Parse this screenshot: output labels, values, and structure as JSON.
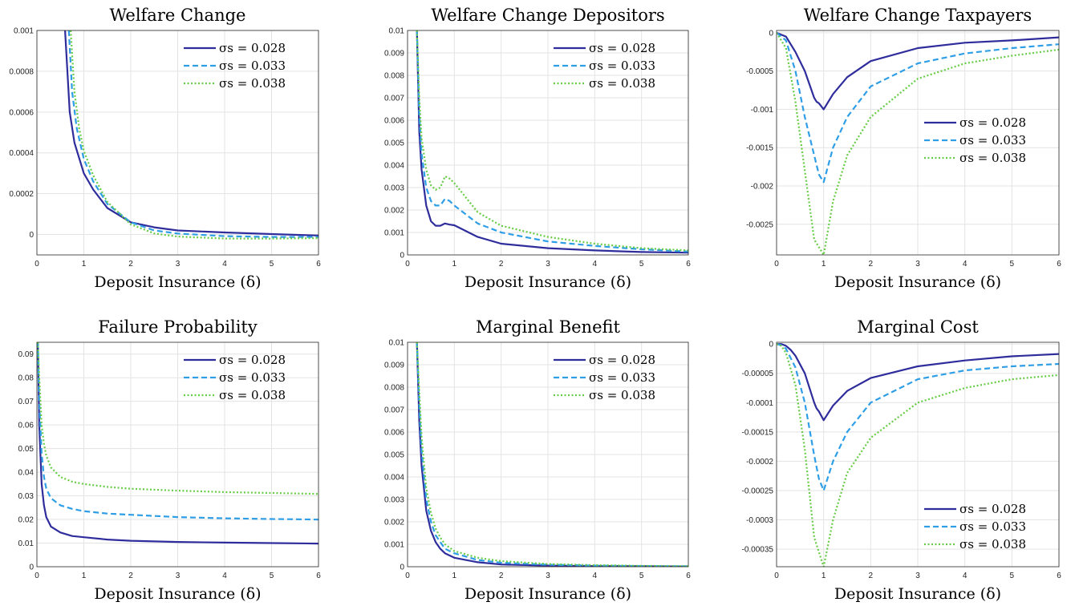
{
  "colors": {
    "s1": "#2f2d9c",
    "s2": "#2e9ee6",
    "s3": "#66cc44"
  },
  "chart_data": [
    {
      "type": "line",
      "title": "Welfare Change",
      "xlabel": "Deposit Insurance (δ)",
      "xlim": [
        0,
        6
      ],
      "ylim": [
        -0.0001,
        0.001
      ],
      "xticks": [
        "0",
        "1",
        "2",
        "3",
        "4",
        "5",
        "6"
      ],
      "yticks": [
        {
          "v": 0,
          "label": "0"
        },
        {
          "v": 0.0002,
          "label": "0.0002"
        },
        {
          "v": 0.0004,
          "label": "0.0004"
        },
        {
          "v": 0.0006,
          "label": "0.0006"
        },
        {
          "v": 0.0008,
          "label": "0.0008"
        },
        {
          "v": 0.001,
          "label": "0.001"
        }
      ],
      "legend": "top-right",
      "series": [
        {
          "name": "σs = 0.028",
          "style": "solid",
          "x": [
            0.6,
            0.7,
            0.8,
            1.0,
            1.2,
            1.5,
            2.0,
            2.5,
            3,
            4,
            5,
            6
          ],
          "y": [
            0.001,
            0.0006,
            0.00045,
            0.0003,
            0.00022,
            0.00013,
            6e-05,
            3.5e-05,
            2e-05,
            1e-05,
            2e-06,
            -5e-06
          ]
        },
        {
          "name": "σs = 0.033",
          "style": "dashed",
          "x": [
            0.68,
            0.75,
            0.85,
            1.0,
            1.2,
            1.5,
            2.0,
            2.5,
            3,
            4,
            5,
            6
          ],
          "y": [
            0.001,
            0.0007,
            0.00052,
            0.00037,
            0.00026,
            0.00015,
            6e-05,
            2e-05,
            5e-06,
            -8e-06,
            -1.2e-05,
            -1.2e-05
          ]
        },
        {
          "name": "σs = 0.038",
          "style": "dotted",
          "x": [
            0.72,
            0.8,
            0.9,
            1.0,
            1.2,
            1.5,
            2.0,
            2.5,
            3,
            4,
            5,
            6
          ],
          "y": [
            0.001,
            0.0007,
            0.00052,
            0.00041,
            0.00029,
            0.00016,
            5e-05,
            5e-06,
            -1e-05,
            -2e-05,
            -2e-05,
            -1.8e-05
          ]
        }
      ]
    },
    {
      "type": "line",
      "title": "Welfare Change Depositors",
      "xlabel": "Deposit Insurance (δ)",
      "xlim": [
        0,
        6
      ],
      "ylim": [
        0,
        0.01
      ],
      "xticks": [
        "0",
        "1",
        "2",
        "3",
        "4",
        "5",
        "6"
      ],
      "yticks": [
        {
          "v": 0,
          "label": "0"
        },
        {
          "v": 0.001,
          "label": "0.001"
        },
        {
          "v": 0.002,
          "label": "0.002"
        },
        {
          "v": 0.003,
          "label": "0.003"
        },
        {
          "v": 0.004,
          "label": "0.004"
        },
        {
          "v": 0.005,
          "label": "0.005"
        },
        {
          "v": 0.006,
          "label": "0.006"
        },
        {
          "v": 0.007,
          "label": "0.007"
        },
        {
          "v": 0.008,
          "label": "0.008"
        },
        {
          "v": 0.009,
          "label": "0.009"
        },
        {
          "v": 0.01,
          "label": "0.01"
        }
      ],
      "legend": "top-right",
      "series": [
        {
          "name": "σs = 0.028",
          "style": "solid",
          "x": [
            0.2,
            0.25,
            0.3,
            0.4,
            0.5,
            0.6,
            0.7,
            0.8,
            0.9,
            1.0,
            1.5,
            2,
            3,
            4,
            5,
            6
          ],
          "y": [
            0.01,
            0.0055,
            0.0038,
            0.0022,
            0.0015,
            0.0013,
            0.0013,
            0.0014,
            0.00135,
            0.00132,
            0.0008,
            0.0005,
            0.0003,
            0.0002,
            0.00013,
            0.0001
          ]
        },
        {
          "name": "σs = 0.033",
          "style": "dashed",
          "x": [
            0.2,
            0.25,
            0.3,
            0.4,
            0.5,
            0.6,
            0.7,
            0.8,
            0.9,
            1.0,
            1.5,
            2,
            3,
            4,
            5,
            6
          ],
          "y": [
            0.01,
            0.0063,
            0.0045,
            0.003,
            0.0024,
            0.0022,
            0.0022,
            0.0025,
            0.0024,
            0.0022,
            0.0014,
            0.001,
            0.0006,
            0.0004,
            0.00025,
            0.00015
          ]
        },
        {
          "name": "σs = 0.038",
          "style": "dotted",
          "x": [
            0.2,
            0.25,
            0.3,
            0.4,
            0.5,
            0.6,
            0.7,
            0.8,
            0.9,
            1.0,
            1.5,
            2,
            3,
            4,
            5,
            6
          ],
          "y": [
            0.01,
            0.007,
            0.0052,
            0.0038,
            0.0031,
            0.0029,
            0.003,
            0.0035,
            0.0034,
            0.0032,
            0.0019,
            0.0013,
            0.0008,
            0.0005,
            0.0003,
            0.0002
          ]
        }
      ]
    },
    {
      "type": "line",
      "title": "Welfare Change Taxpayers",
      "xlabel": "Deposit Insurance (δ)",
      "xlim": [
        0,
        6
      ],
      "ylim": [
        -0.0029,
        3e-05
      ],
      "xticks": [
        "0",
        "1",
        "2",
        "3",
        "4",
        "5",
        "6"
      ],
      "yticks": [
        {
          "v": 0,
          "label": "0"
        },
        {
          "v": -0.0005,
          "label": "-0.0005"
        },
        {
          "v": -0.001,
          "label": "-0.001"
        },
        {
          "v": -0.0015,
          "label": "-0.0015"
        },
        {
          "v": -0.002,
          "label": "-0.002"
        },
        {
          "v": -0.0025,
          "label": "-0.0025"
        }
      ],
      "legend": "middle-right",
      "series": [
        {
          "name": "σs = 0.028",
          "style": "solid",
          "x": [
            0,
            0.2,
            0.4,
            0.6,
            0.8,
            0.85,
            0.9,
            1.0,
            1.2,
            1.5,
            2,
            3,
            4,
            5,
            6
          ],
          "y": [
            0,
            -5e-05,
            -0.00025,
            -0.0005,
            -0.00085,
            -0.0009,
            -0.00092,
            -0.001,
            -0.0008,
            -0.00058,
            -0.00037,
            -0.0002,
            -0.00013,
            -0.0001,
            -6e-05
          ]
        },
        {
          "name": "σs = 0.033",
          "style": "dashed",
          "x": [
            0,
            0.2,
            0.4,
            0.6,
            0.8,
            0.9,
            1.0,
            1.2,
            1.5,
            2,
            3,
            4,
            5,
            6
          ],
          "y": [
            0,
            -0.0001,
            -0.0005,
            -0.0011,
            -0.0016,
            -0.00185,
            -0.00195,
            -0.0015,
            -0.0011,
            -0.0007,
            -0.0004,
            -0.00027,
            -0.0002,
            -0.00015
          ]
        },
        {
          "name": "σs = 0.038",
          "style": "dotted",
          "x": [
            0,
            0.2,
            0.4,
            0.6,
            0.8,
            0.9,
            1.0,
            1.2,
            1.5,
            2,
            3,
            4,
            5,
            6
          ],
          "y": [
            0,
            -0.0002,
            -0.0009,
            -0.0018,
            -0.0027,
            -0.0028,
            -0.0029,
            -0.0022,
            -0.0016,
            -0.0011,
            -0.0006,
            -0.0004,
            -0.0003,
            -0.00022
          ]
        }
      ]
    },
    {
      "type": "line",
      "title": "Failure Probability",
      "xlabel": "Deposit Insurance (δ)",
      "xlim": [
        0,
        6
      ],
      "ylim": [
        0,
        0.095
      ],
      "xticks": [
        "0",
        "1",
        "2",
        "3",
        "4",
        "5",
        "6"
      ],
      "yticks": [
        {
          "v": 0,
          "label": "0"
        },
        {
          "v": 0.01,
          "label": "0.01"
        },
        {
          "v": 0.02,
          "label": "0.02"
        },
        {
          "v": 0.03,
          "label": "0.03"
        },
        {
          "v": 0.04,
          "label": "0.04"
        },
        {
          "v": 0.05,
          "label": "0.05"
        },
        {
          "v": 0.06,
          "label": "0.06"
        },
        {
          "v": 0.07,
          "label": "0.07"
        },
        {
          "v": 0.08,
          "label": "0.08"
        },
        {
          "v": 0.09,
          "label": "0.09"
        }
      ],
      "legend": "top-right",
      "series": [
        {
          "name": "σs = 0.028",
          "style": "solid",
          "x": [
            0.02,
            0.05,
            0.1,
            0.15,
            0.2,
            0.3,
            0.5,
            0.75,
            1,
            1.5,
            2,
            3,
            4,
            5,
            6
          ],
          "y": [
            0.095,
            0.06,
            0.035,
            0.026,
            0.021,
            0.017,
            0.0145,
            0.013,
            0.0125,
            0.0115,
            0.011,
            0.0105,
            0.0102,
            0.01,
            0.0098
          ]
        },
        {
          "name": "σs = 0.033",
          "style": "dashed",
          "x": [
            0.02,
            0.05,
            0.1,
            0.15,
            0.2,
            0.3,
            0.5,
            0.75,
            1,
            1.5,
            2,
            3,
            4,
            5,
            6
          ],
          "y": [
            0.095,
            0.07,
            0.048,
            0.038,
            0.033,
            0.029,
            0.026,
            0.0245,
            0.0235,
            0.0225,
            0.022,
            0.021,
            0.0205,
            0.0202,
            0.02
          ]
        },
        {
          "name": "σs = 0.038",
          "style": "dotted",
          "x": [
            0.02,
            0.05,
            0.1,
            0.15,
            0.2,
            0.3,
            0.5,
            0.75,
            1,
            1.5,
            2,
            3,
            4,
            5,
            6
          ],
          "y": [
            0.095,
            0.08,
            0.06,
            0.052,
            0.047,
            0.042,
            0.038,
            0.036,
            0.035,
            0.0338,
            0.033,
            0.0322,
            0.0316,
            0.0312,
            0.0308
          ]
        }
      ]
    },
    {
      "type": "line",
      "title": "Marginal Benefit",
      "xlabel": "Deposit Insurance (δ)",
      "xlim": [
        0,
        6
      ],
      "ylim": [
        0,
        0.01
      ],
      "xticks": [
        "0",
        "1",
        "2",
        "3",
        "4",
        "5",
        "6"
      ],
      "yticks": [
        {
          "v": 0,
          "label": "0"
        },
        {
          "v": 0.001,
          "label": "0.001"
        },
        {
          "v": 0.002,
          "label": "0.002"
        },
        {
          "v": 0.003,
          "label": "0.003"
        },
        {
          "v": 0.004,
          "label": "0.004"
        },
        {
          "v": 0.005,
          "label": "0.005"
        },
        {
          "v": 0.006,
          "label": "0.006"
        },
        {
          "v": 0.007,
          "label": "0.007"
        },
        {
          "v": 0.008,
          "label": "0.008"
        },
        {
          "v": 0.009,
          "label": "0.009"
        },
        {
          "v": 0.01,
          "label": "0.01"
        }
      ],
      "legend": "top-right",
      "series": [
        {
          "name": "σs = 0.028",
          "style": "solid",
          "x": [
            0.2,
            0.25,
            0.3,
            0.4,
            0.5,
            0.6,
            0.7,
            0.8,
            1.0,
            1.5,
            2,
            3,
            4,
            5,
            6
          ],
          "y": [
            0.01,
            0.0065,
            0.0045,
            0.0025,
            0.0016,
            0.0011,
            0.0008,
            0.0006,
            0.0004,
            0.0002,
            0.0001,
            5e-05,
            3e-05,
            2e-05,
            1e-05
          ]
        },
        {
          "name": "σs = 0.033",
          "style": "dashed",
          "x": [
            0.2,
            0.25,
            0.3,
            0.4,
            0.5,
            0.6,
            0.7,
            0.8,
            1.0,
            1.5,
            2,
            3,
            4,
            5,
            6
          ],
          "y": [
            0.01,
            0.0072,
            0.0052,
            0.003,
            0.002,
            0.0014,
            0.0011,
            0.0008,
            0.0006,
            0.0003,
            0.00018,
            9e-05,
            5e-05,
            3e-05,
            2e-05
          ]
        },
        {
          "name": "σs = 0.038",
          "style": "dotted",
          "x": [
            0.2,
            0.25,
            0.3,
            0.4,
            0.5,
            0.6,
            0.7,
            0.8,
            1.0,
            1.5,
            2,
            3,
            4,
            5,
            6
          ],
          "y": [
            0.01,
            0.0078,
            0.0058,
            0.0035,
            0.0024,
            0.0017,
            0.0013,
            0.001,
            0.0007,
            0.0004,
            0.00025,
            0.00012,
            7e-05,
            4e-05,
            2e-05
          ]
        }
      ]
    },
    {
      "type": "line",
      "title": "Marginal Cost",
      "xlabel": "Deposit Insurance (δ)",
      "xlim": [
        0,
        6
      ],
      "ylim": [
        -0.00038,
        3e-06
      ],
      "xticks": [
        "0",
        "1",
        "2",
        "3",
        "4",
        "5",
        "6"
      ],
      "yticks": [
        {
          "v": 0,
          "label": "0"
        },
        {
          "v": -5e-05,
          "label": "-0.00005"
        },
        {
          "v": -0.0001,
          "label": "-0.0001"
        },
        {
          "v": -0.00015,
          "label": "-0.00015"
        },
        {
          "v": -0.0002,
          "label": "-0.0002"
        },
        {
          "v": -0.00025,
          "label": "-0.00025"
        },
        {
          "v": -0.0003,
          "label": "-0.0003"
        },
        {
          "v": -0.00035,
          "label": "-0.00035"
        }
      ],
      "legend": "bottom-right",
      "series": [
        {
          "name": "σs = 0.028",
          "style": "solid",
          "x": [
            0,
            0.1,
            0.2,
            0.3,
            0.4,
            0.6,
            0.8,
            0.85,
            0.9,
            1.0,
            1.2,
            1.5,
            2,
            3,
            4,
            5,
            6
          ],
          "y": [
            0,
            0,
            -3e-06,
            -1e-05,
            -2e-05,
            -5e-05,
            -0.0001,
            -0.00011,
            -0.000115,
            -0.00013,
            -0.000105,
            -8e-05,
            -5.8e-05,
            -3.8e-05,
            -2.8e-05,
            -2.1e-05,
            -1.7e-05
          ]
        },
        {
          "name": "σs = 0.033",
          "style": "dashed",
          "x": [
            0,
            0.1,
            0.2,
            0.4,
            0.6,
            0.8,
            0.9,
            1.0,
            1.2,
            1.5,
            2,
            3,
            4,
            5,
            6
          ],
          "y": [
            0,
            -2e-06,
            -8e-06,
            -4e-05,
            -0.0001,
            -0.00019,
            -0.00023,
            -0.00025,
            -0.0002,
            -0.00015,
            -0.0001,
            -6e-05,
            -4.5e-05,
            -3.8e-05,
            -3.4e-05
          ]
        },
        {
          "name": "σs = 0.038",
          "style": "dotted",
          "x": [
            0,
            0.1,
            0.2,
            0.4,
            0.6,
            0.8,
            0.9,
            1.0,
            1.2,
            1.5,
            2,
            3,
            4,
            5,
            6
          ],
          "y": [
            0,
            -3e-06,
            -1.5e-05,
            -7e-05,
            -0.00018,
            -0.00033,
            -0.000355,
            -0.00038,
            -0.0003,
            -0.00022,
            -0.00016,
            -0.0001,
            -7.5e-05,
            -6e-05,
            -5.3e-05
          ]
        }
      ]
    }
  ]
}
